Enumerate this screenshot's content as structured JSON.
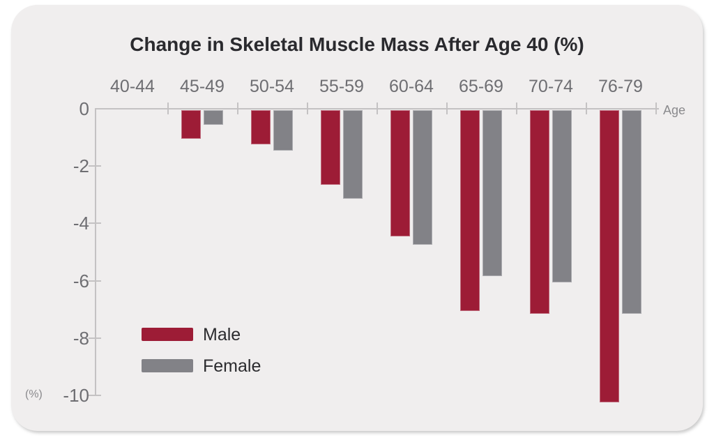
{
  "title": "Change in Skeletal Muscle Mass After Age 40 (%)",
  "chart_data": {
    "type": "bar",
    "title": "Change in Skeletal Muscle Mass After Age 40 (%)",
    "categories": [
      "40-44",
      "45-49",
      "50-54",
      "55-59",
      "60-64",
      "65-69",
      "70-74",
      "76-79"
    ],
    "series": [
      {
        "name": "Male",
        "color": "#9D1C36",
        "values": [
          0,
          -1.0,
          -1.2,
          -2.6,
          -4.4,
          -7.0,
          -7.1,
          -10.2
        ]
      },
      {
        "name": "Female",
        "color": "#828287",
        "values": [
          0,
          -0.5,
          -1.4,
          -3.1,
          -4.7,
          -5.8,
          -6.0,
          -7.1
        ]
      }
    ],
    "xlabel": "Age",
    "ylabel": "(%)",
    "ylim": [
      -10.5,
      0
    ],
    "y_ticks": [
      0,
      -2,
      -4,
      -6,
      -8,
      -10
    ],
    "y_tick_labels": [
      "0",
      "-2",
      "-4",
      "-6",
      "-8",
      "-10"
    ],
    "grid": false,
    "legend_position": "bottom-left",
    "bar_direction": "down"
  },
  "axis": {
    "x_axis_title": "Age",
    "y_axis_unit": "(%)"
  },
  "legend": {
    "items": [
      {
        "label": "Male",
        "color": "#9D1C36"
      },
      {
        "label": "Female",
        "color": "#828287"
      }
    ]
  },
  "colors": {
    "page_background": "#FFFFFF",
    "card_background": "#F0EEEE",
    "male_bar": "#9D1C36",
    "female_bar": "#828287",
    "title_text": "#2A2A2E",
    "axis_text": "#6E6E72",
    "annotation_text": "#8A8A8D",
    "axis_line": "#C4C2C3"
  }
}
